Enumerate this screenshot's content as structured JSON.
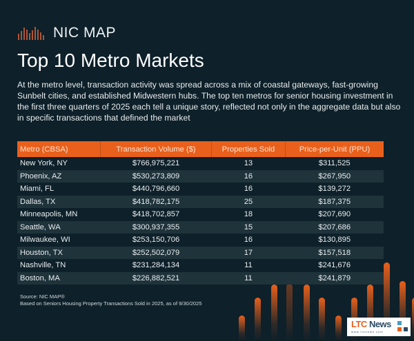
{
  "brand": {
    "name": "NIC MAP",
    "accent": "#e8601c",
    "background": "#0e2029"
  },
  "title": "Top 10 Metro Markets",
  "intro": "At the metro level, transaction activity was spread across a mix of coastal gateways, fast-growing Sunbelt cities, and established Midwestern hubs. The top ten metros for senior housing investment in the first three quarters of 2025 each tell a unique story, reflected not only in the aggregate data but also in specific transactions that defined the market",
  "table": {
    "headers": [
      "Metro (CBSA)",
      "Transaction Volume ($)",
      "Properties Sold",
      "Price-per-Unit (PPU)"
    ],
    "rows": [
      [
        "New York, NY",
        "$766,975,221",
        "13",
        "$311,525"
      ],
      [
        "Phoenix, AZ",
        "$530,273,809",
        "16",
        "$267,950"
      ],
      [
        "Miami, FL",
        "$440,796,660",
        "16",
        "$139,272"
      ],
      [
        "Dallas, TX",
        "$418,782,175",
        "25",
        "$187,375"
      ],
      [
        "Minneapolis, MN",
        "$418,702,857",
        "18",
        "$207,690"
      ],
      [
        "Seattle, WA",
        "$300,937,355",
        "15",
        "$207,686"
      ],
      [
        "Milwaukee, WI",
        "$253,150,706",
        "16",
        "$130,895"
      ],
      [
        "Houston, TX",
        "$252,502,079",
        "17",
        "$157,518"
      ],
      [
        "Nashville, TN",
        "$231,284,134",
        "11",
        "$241,676"
      ],
      [
        "Boston, MA",
        "$226,882,521",
        "11",
        "$241,879"
      ]
    ]
  },
  "source": {
    "line1": "Source: NIC MAP®",
    "line2": "Based on Seniors Housing Property Transactions Sold in 2025, as of 9/30/2025"
  },
  "badge": {
    "ltc": "LTC",
    "news": "News",
    "url": "www.ltcnews.com"
  }
}
